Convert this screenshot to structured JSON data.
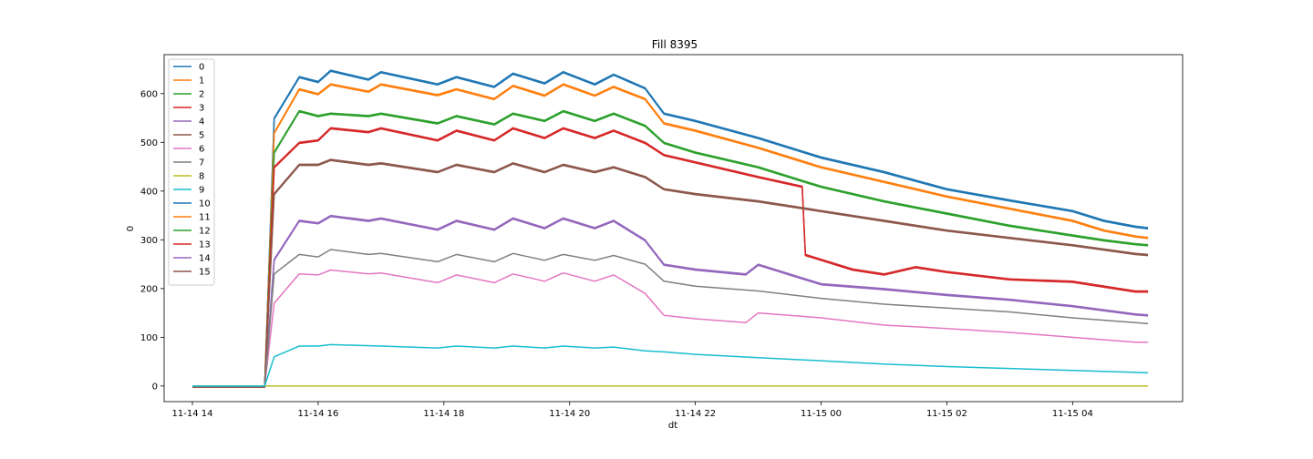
{
  "chart_data": {
    "type": "line",
    "title": "Fill 8395",
    "xlabel": "dt",
    "ylabel": "0",
    "x_ticks": [
      "11-14 14",
      "11-14 16",
      "11-14 18",
      "11-14 20",
      "11-14 22",
      "11-15 00",
      "11-15 02",
      "11-15 04"
    ],
    "x_tick_hours": [
      0,
      2,
      4,
      6,
      8,
      10,
      12,
      14
    ],
    "y_ticks": [
      0,
      100,
      200,
      300,
      400,
      500,
      600
    ],
    "xlim_hours": [
      -0.45,
      15.75
    ],
    "ylim": [
      -32,
      680
    ],
    "grid": false,
    "legend_position": "upper-left",
    "series": [
      {
        "name": "0",
        "color": "#1f77b4"
      },
      {
        "name": "1",
        "color": "#ff7f0e"
      },
      {
        "name": "2",
        "color": "#2ca02c"
      },
      {
        "name": "3",
        "color": "#d62728"
      },
      {
        "name": "4",
        "color": "#9467bd"
      },
      {
        "name": "5",
        "color": "#8c564b"
      },
      {
        "name": "6",
        "color": "#e377c2"
      },
      {
        "name": "7",
        "color": "#7f7f7f"
      },
      {
        "name": "8",
        "color": "#bcbd22"
      },
      {
        "name": "9",
        "color": "#17becf"
      },
      {
        "name": "10",
        "color": "#1f77b4"
      },
      {
        "name": "11",
        "color": "#ff7f0e"
      },
      {
        "name": "12",
        "color": "#2ca02c"
      },
      {
        "name": "13",
        "color": "#d62728"
      },
      {
        "name": "14",
        "color": "#9467bd"
      },
      {
        "name": "15",
        "color": "#8c564b"
      }
    ],
    "profiles": [
      {
        "series": [
          "0",
          "10"
        ],
        "points": [
          [
            0.0,
            0
          ],
          [
            1.15,
            0
          ],
          [
            1.3,
            550
          ],
          [
            1.7,
            635
          ],
          [
            2.0,
            625
          ],
          [
            2.2,
            648
          ],
          [
            2.8,
            630
          ],
          [
            3.0,
            645
          ],
          [
            3.9,
            620
          ],
          [
            4.2,
            635
          ],
          [
            4.8,
            615
          ],
          [
            5.1,
            642
          ],
          [
            5.6,
            622
          ],
          [
            5.9,
            645
          ],
          [
            6.4,
            620
          ],
          [
            6.7,
            640
          ],
          [
            7.2,
            612
          ],
          [
            7.5,
            560
          ],
          [
            8.0,
            545
          ],
          [
            9.0,
            510
          ],
          [
            10.0,
            470
          ],
          [
            11.0,
            440
          ],
          [
            12.0,
            405
          ],
          [
            13.0,
            382
          ],
          [
            14.0,
            360
          ],
          [
            14.5,
            340
          ],
          [
            15.0,
            328
          ],
          [
            15.2,
            325
          ]
        ]
      },
      {
        "series": [
          "1",
          "11"
        ],
        "points": [
          [
            0.0,
            0
          ],
          [
            1.15,
            0
          ],
          [
            1.3,
            520
          ],
          [
            1.7,
            610
          ],
          [
            2.0,
            600
          ],
          [
            2.2,
            620
          ],
          [
            2.8,
            605
          ],
          [
            3.0,
            620
          ],
          [
            3.9,
            598
          ],
          [
            4.2,
            610
          ],
          [
            4.8,
            590
          ],
          [
            5.1,
            617
          ],
          [
            5.6,
            597
          ],
          [
            5.9,
            620
          ],
          [
            6.4,
            597
          ],
          [
            6.7,
            615
          ],
          [
            7.2,
            590
          ],
          [
            7.5,
            540
          ],
          [
            8.0,
            525
          ],
          [
            9.0,
            490
          ],
          [
            10.0,
            450
          ],
          [
            11.0,
            420
          ],
          [
            12.0,
            390
          ],
          [
            13.0,
            365
          ],
          [
            14.0,
            340
          ],
          [
            14.5,
            320
          ],
          [
            15.0,
            308
          ],
          [
            15.2,
            305
          ]
        ]
      },
      {
        "series": [
          "2",
          "12"
        ],
        "points": [
          [
            0.0,
            0
          ],
          [
            1.15,
            0
          ],
          [
            1.3,
            480
          ],
          [
            1.7,
            565
          ],
          [
            2.0,
            555
          ],
          [
            2.2,
            560
          ],
          [
            2.8,
            555
          ],
          [
            3.0,
            560
          ],
          [
            3.9,
            540
          ],
          [
            4.2,
            555
          ],
          [
            4.8,
            538
          ],
          [
            5.1,
            560
          ],
          [
            5.6,
            545
          ],
          [
            5.9,
            565
          ],
          [
            6.4,
            545
          ],
          [
            6.7,
            560
          ],
          [
            7.2,
            535
          ],
          [
            7.5,
            500
          ],
          [
            8.0,
            480
          ],
          [
            9.0,
            450
          ],
          [
            10.0,
            410
          ],
          [
            11.0,
            380
          ],
          [
            12.0,
            355
          ],
          [
            13.0,
            330
          ],
          [
            14.0,
            310
          ],
          [
            14.5,
            300
          ],
          [
            15.0,
            292
          ],
          [
            15.2,
            290
          ]
        ]
      },
      {
        "series": [
          "3",
          "13"
        ],
        "points": [
          [
            0.0,
            0
          ],
          [
            1.15,
            0
          ],
          [
            1.3,
            450
          ],
          [
            1.7,
            500
          ],
          [
            2.0,
            505
          ],
          [
            2.2,
            530
          ],
          [
            2.8,
            522
          ],
          [
            3.0,
            530
          ],
          [
            3.9,
            505
          ],
          [
            4.2,
            525
          ],
          [
            4.8,
            505
          ],
          [
            5.1,
            530
          ],
          [
            5.6,
            510
          ],
          [
            5.9,
            530
          ],
          [
            6.4,
            510
          ],
          [
            6.7,
            525
          ],
          [
            7.2,
            500
          ],
          [
            7.5,
            475
          ],
          [
            8.0,
            460
          ],
          [
            9.0,
            430
          ],
          [
            9.7,
            410
          ],
          [
            9.75,
            270
          ],
          [
            10.5,
            240
          ],
          [
            11.0,
            230
          ],
          [
            11.5,
            245
          ],
          [
            12.0,
            235
          ],
          [
            13.0,
            220
          ],
          [
            14.0,
            215
          ],
          [
            15.0,
            195
          ],
          [
            15.2,
            195
          ]
        ]
      },
      {
        "series": [
          "4",
          "14"
        ],
        "points": [
          [
            0.0,
            0
          ],
          [
            1.15,
            0
          ],
          [
            1.3,
            260
          ],
          [
            1.7,
            340
          ],
          [
            2.0,
            335
          ],
          [
            2.2,
            350
          ],
          [
            2.8,
            340
          ],
          [
            3.0,
            345
          ],
          [
            3.9,
            322
          ],
          [
            4.2,
            340
          ],
          [
            4.8,
            322
          ],
          [
            5.1,
            345
          ],
          [
            5.6,
            325
          ],
          [
            5.9,
            345
          ],
          [
            6.4,
            325
          ],
          [
            6.7,
            340
          ],
          [
            7.2,
            300
          ],
          [
            7.5,
            250
          ],
          [
            8.0,
            240
          ],
          [
            8.8,
            230
          ],
          [
            9.0,
            250
          ],
          [
            10.0,
            210
          ],
          [
            11.0,
            200
          ],
          [
            12.0,
            188
          ],
          [
            13.0,
            178
          ],
          [
            14.0,
            165
          ],
          [
            15.0,
            148
          ],
          [
            15.2,
            146
          ]
        ]
      },
      {
        "series": [
          "5",
          "15"
        ],
        "points": [
          [
            0.0,
            0
          ],
          [
            1.15,
            0
          ],
          [
            1.3,
            395
          ],
          [
            1.7,
            455
          ],
          [
            2.0,
            455
          ],
          [
            2.2,
            465
          ],
          [
            2.8,
            455
          ],
          [
            3.0,
            458
          ],
          [
            3.9,
            440
          ],
          [
            4.2,
            455
          ],
          [
            4.8,
            440
          ],
          [
            5.1,
            458
          ],
          [
            5.6,
            440
          ],
          [
            5.9,
            455
          ],
          [
            6.4,
            440
          ],
          [
            6.7,
            450
          ],
          [
            7.2,
            430
          ],
          [
            7.5,
            405
          ],
          [
            8.0,
            395
          ],
          [
            9.0,
            380
          ],
          [
            10.0,
            360
          ],
          [
            11.0,
            340
          ],
          [
            12.0,
            320
          ],
          [
            13.0,
            305
          ],
          [
            14.0,
            290
          ],
          [
            15.0,
            272
          ],
          [
            15.2,
            270
          ]
        ]
      },
      {
        "series": [
          "6"
        ],
        "points": [
          [
            0.0,
            0
          ],
          [
            1.15,
            0
          ],
          [
            1.3,
            170
          ],
          [
            1.7,
            230
          ],
          [
            2.0,
            228
          ],
          [
            2.2,
            238
          ],
          [
            2.8,
            230
          ],
          [
            3.0,
            232
          ],
          [
            3.9,
            212
          ],
          [
            4.2,
            228
          ],
          [
            4.8,
            212
          ],
          [
            5.1,
            230
          ],
          [
            5.6,
            215
          ],
          [
            5.9,
            232
          ],
          [
            6.4,
            215
          ],
          [
            6.7,
            228
          ],
          [
            7.2,
            190
          ],
          [
            7.5,
            145
          ],
          [
            8.0,
            138
          ],
          [
            8.8,
            130
          ],
          [
            9.0,
            150
          ],
          [
            10.0,
            140
          ],
          [
            11.0,
            125
          ],
          [
            12.0,
            118
          ],
          [
            13.0,
            110
          ],
          [
            14.0,
            100
          ],
          [
            15.0,
            90
          ],
          [
            15.2,
            90
          ]
        ]
      },
      {
        "series": [
          "7"
        ],
        "points": [
          [
            0.0,
            0
          ],
          [
            1.15,
            0
          ],
          [
            1.3,
            230
          ],
          [
            1.7,
            270
          ],
          [
            2.0,
            265
          ],
          [
            2.2,
            280
          ],
          [
            2.8,
            270
          ],
          [
            3.0,
            272
          ],
          [
            3.9,
            255
          ],
          [
            4.2,
            270
          ],
          [
            4.8,
            255
          ],
          [
            5.1,
            272
          ],
          [
            5.6,
            258
          ],
          [
            5.9,
            270
          ],
          [
            6.4,
            258
          ],
          [
            6.7,
            268
          ],
          [
            7.2,
            250
          ],
          [
            7.5,
            215
          ],
          [
            8.0,
            205
          ],
          [
            9.0,
            195
          ],
          [
            10.0,
            180
          ],
          [
            11.0,
            168
          ],
          [
            12.0,
            160
          ],
          [
            13.0,
            152
          ],
          [
            14.0,
            140
          ],
          [
            15.0,
            130
          ],
          [
            15.2,
            128
          ]
        ]
      },
      {
        "series": [
          "8"
        ],
        "points": [
          [
            0.0,
            0
          ],
          [
            15.2,
            0
          ]
        ]
      },
      {
        "series": [
          "9"
        ],
        "points": [
          [
            0.0,
            0
          ],
          [
            1.15,
            0
          ],
          [
            1.3,
            60
          ],
          [
            1.7,
            82
          ],
          [
            2.0,
            82
          ],
          [
            2.2,
            85
          ],
          [
            3.0,
            82
          ],
          [
            3.9,
            78
          ],
          [
            4.2,
            82
          ],
          [
            4.8,
            78
          ],
          [
            5.1,
            82
          ],
          [
            5.6,
            78
          ],
          [
            5.9,
            82
          ],
          [
            6.4,
            78
          ],
          [
            6.7,
            80
          ],
          [
            7.2,
            72
          ],
          [
            7.5,
            70
          ],
          [
            8.0,
            65
          ],
          [
            9.0,
            58
          ],
          [
            10.0,
            52
          ],
          [
            11.0,
            45
          ],
          [
            12.0,
            40
          ],
          [
            13.0,
            36
          ],
          [
            14.0,
            32
          ],
          [
            15.0,
            28
          ],
          [
            15.2,
            27
          ]
        ]
      }
    ]
  }
}
